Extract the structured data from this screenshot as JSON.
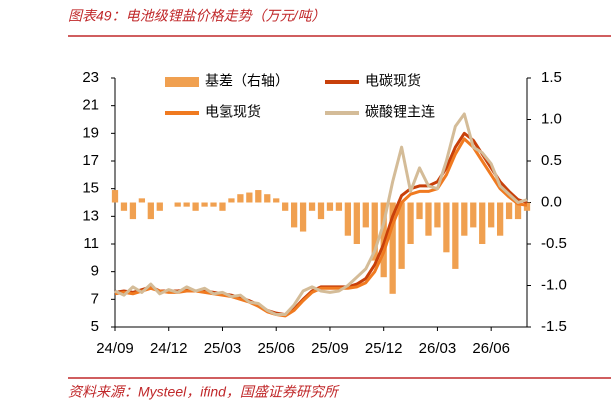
{
  "chart_data": {
    "type": "bar-line",
    "title": "图表49：电池级锂盐价格走势（万元/吨）",
    "source": "资料来源：Mysteel，ifind，国盛证券研究所",
    "categories": [
      "24/09",
      null,
      null,
      null,
      null,
      null,
      "24/12",
      null,
      null,
      null,
      null,
      null,
      "25/03",
      null,
      null,
      null,
      null,
      null,
      "25/06",
      null,
      null,
      null,
      null,
      null,
      "25/09",
      null,
      null,
      null,
      null,
      null,
      "25/12",
      null,
      null,
      null,
      null,
      null,
      "26/03",
      null,
      null,
      null,
      null,
      null,
      "26/06",
      null,
      null,
      null,
      null
    ],
    "ylim": [
      5,
      23
    ],
    "yticks": [
      5,
      7,
      9,
      11,
      13,
      15,
      17,
      19,
      21,
      23
    ],
    "y2lim": [
      -1.5,
      1.5
    ],
    "y2ticks": [
      -1.5,
      {
        "value": -1,
        "label": "-1.0"
      },
      -0.5,
      {
        "value": 0,
        "label": "0.0"
      },
      0.5,
      {
        "value": 1,
        "label": "1.0"
      },
      1.5
    ],
    "series": [
      {
        "name": "基差（右轴）",
        "type": "bar",
        "axis": "y2",
        "color": "#f0a050",
        "values": [
          0.15,
          -0.1,
          -0.2,
          0.05,
          -0.2,
          -0.1,
          0.0,
          -0.05,
          -0.05,
          -0.1,
          -0.05,
          -0.05,
          -0.1,
          0.05,
          0.1,
          0.12,
          0.15,
          0.1,
          0.05,
          -0.1,
          -0.3,
          -0.35,
          -0.1,
          -0.2,
          -0.1,
          -0.1,
          -0.4,
          -0.5,
          -0.3,
          -0.7,
          -0.9,
          -1.1,
          -0.8,
          -0.5,
          -0.2,
          -0.4,
          -0.3,
          -0.6,
          -0.8,
          -0.4,
          -0.3,
          -0.5,
          -0.3,
          -0.4,
          -0.2,
          -0.2,
          -0.1
        ]
      },
      {
        "name": "电碳现货",
        "type": "line",
        "color": "#c8400a",
        "values": [
          7.5,
          7.6,
          7.5,
          7.7,
          7.9,
          7.6,
          7.6,
          7.6,
          7.7,
          7.6,
          7.6,
          7.5,
          7.4,
          7.3,
          7.1,
          6.9,
          6.6,
          6.2,
          6.0,
          5.9,
          6.3,
          7.0,
          7.6,
          7.9,
          7.9,
          7.9,
          7.9,
          8.1,
          8.5,
          9.5,
          11.0,
          13.0,
          14.5,
          15.0,
          15.2,
          15.2,
          15.5,
          16.5,
          18.0,
          19.0,
          18.5,
          17.5,
          16.5,
          15.5,
          14.8,
          14.2,
          14.0
        ]
      },
      {
        "name": "电氢现货",
        "type": "line",
        "color": "#f07a20",
        "values": [
          7.4,
          7.5,
          7.4,
          7.6,
          7.8,
          7.6,
          7.5,
          7.5,
          7.6,
          7.6,
          7.5,
          7.4,
          7.3,
          7.2,
          7.0,
          6.8,
          6.5,
          6.1,
          5.9,
          5.8,
          6.2,
          6.9,
          7.5,
          7.8,
          7.8,
          7.8,
          7.8,
          7.9,
          8.2,
          9.0,
          10.4,
          12.4,
          14.0,
          14.6,
          14.8,
          14.8,
          15.0,
          16.0,
          17.5,
          18.6,
          18.0,
          17.0,
          16.0,
          15.0,
          14.4,
          13.9,
          13.8
        ]
      },
      {
        "name": "碳酸锂主连",
        "type": "line",
        "color": "#d4bc98",
        "values": [
          7.6,
          7.3,
          7.9,
          7.5,
          8.1,
          7.4,
          7.7,
          7.5,
          7.9,
          7.6,
          7.8,
          7.4,
          7.5,
          7.2,
          7.3,
          6.8,
          6.7,
          6.2,
          5.9,
          5.9,
          6.6,
          7.6,
          7.9,
          7.6,
          7.5,
          7.6,
          8.0,
          8.6,
          9.2,
          10.5,
          12.5,
          15.5,
          18.0,
          14.8,
          16.5,
          15.2,
          15.0,
          17.0,
          19.5,
          20.4,
          18.0,
          17.6,
          16.8,
          15.2,
          14.6,
          14.0,
          14.2
        ]
      }
    ]
  }
}
